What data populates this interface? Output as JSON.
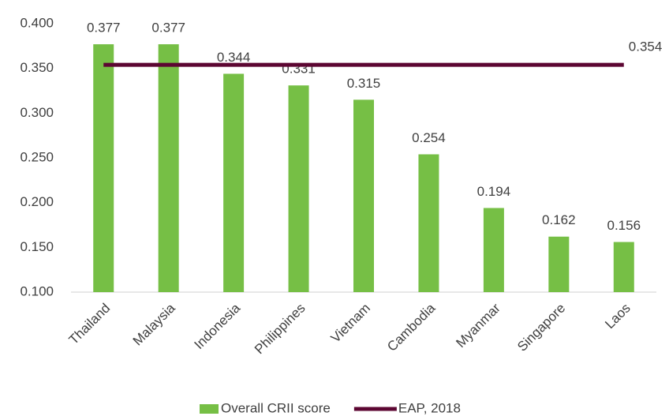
{
  "chart_data": {
    "type": "bar",
    "categories": [
      "Thailand",
      "Malaysia",
      "Indonesia",
      "Philippines",
      "Vietnam",
      "Cambodia",
      "Myanmar",
      "Singapore",
      "Laos"
    ],
    "series": [
      {
        "name": "Overall CRII score",
        "color": "#76bf45",
        "type": "bar",
        "values": [
          0.377,
          0.377,
          0.344,
          0.331,
          0.315,
          0.254,
          0.194,
          0.162,
          0.156
        ]
      },
      {
        "name": "EAP, 2018",
        "color": "#5c0632",
        "type": "line",
        "values": [
          0.354,
          0.354,
          0.354,
          0.354,
          0.354,
          0.354,
          0.354,
          0.354,
          0.354
        ]
      }
    ],
    "ylim": [
      0.1,
      0.4
    ],
    "yticks": [
      {
        "value": 0.1,
        "label": "0.100"
      },
      {
        "value": 0.15,
        "label": "0.150"
      },
      {
        "value": 0.2,
        "label": "0.200"
      },
      {
        "value": 0.25,
        "label": "0.250"
      },
      {
        "value": 0.3,
        "label": "0.300"
      },
      {
        "value": 0.35,
        "label": "0.350"
      },
      {
        "value": 0.4,
        "label": "0.400"
      }
    ],
    "grid": false,
    "legend": "bottom"
  }
}
